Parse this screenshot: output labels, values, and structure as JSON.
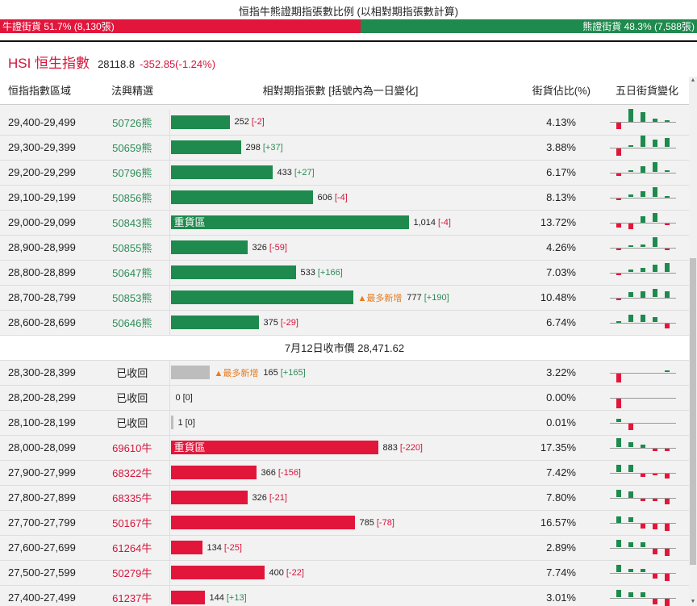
{
  "header": {
    "title": "恒指牛熊證期指張數比例 (以相對期指張數計算)",
    "bull_label": "牛證街貨 51.7% (8,130張)",
    "bear_label": "熊證街貨 48.3% (7,588張)",
    "bull_share": 51.7,
    "bear_share": 48.3
  },
  "index": {
    "name": "HSI 恒生指數",
    "value": "28118.8",
    "change": "-352.85(-1.24%)"
  },
  "table": {
    "headers": {
      "range": "恒指指數區域",
      "pick": "法興精選",
      "contracts": "相對期指張數 [括號內為一日變化]",
      "share": "街貨佔比(%)",
      "five_day": "五日街貨變化"
    },
    "bear_rows": [
      {
        "range": "29,400-29,499",
        "code": "50726熊",
        "n": 252,
        "num": "252",
        "chg": "[-2]",
        "dir": "neg",
        "hot": "",
        "pct": "4.13%",
        "spark": [
          -1.0,
          2.0,
          1.5,
          0.5,
          0.3
        ]
      },
      {
        "range": "29,300-29,399",
        "code": "50659熊",
        "n": 298,
        "num": "298",
        "chg": "[+37]",
        "dir": "pos",
        "hot": "",
        "pct": "3.88%",
        "spark": [
          -1.2,
          0.3,
          1.8,
          1.2,
          1.4
        ]
      },
      {
        "range": "29,200-29,299",
        "code": "50796熊",
        "n": 433,
        "num": "433",
        "chg": "[+27]",
        "dir": "pos",
        "hot": "",
        "pct": "6.17%",
        "spark": [
          -0.4,
          0.3,
          1.0,
          1.6,
          0.3
        ]
      },
      {
        "range": "29,100-29,199",
        "code": "50856熊",
        "n": 606,
        "num": "606",
        "chg": "[-4]",
        "dir": "neg",
        "hot": "",
        "pct": "8.13%",
        "spark": [
          -0.3,
          0.4,
          0.9,
          1.6,
          0.2
        ]
      },
      {
        "range": "29,000-29,099",
        "code": "50843熊",
        "label": "重貨區",
        "n": 1014,
        "num": "1,014",
        "chg": "[-4]",
        "dir": "neg",
        "hot": "",
        "pct": "13.72%",
        "spark": [
          -0.7,
          -0.9,
          1.0,
          1.4,
          -0.3
        ]
      },
      {
        "range": "28,900-28,999",
        "code": "50855熊",
        "n": 326,
        "num": "326",
        "chg": "[-59]",
        "dir": "neg",
        "hot": "",
        "pct": "4.26%",
        "spark": [
          -0.3,
          0.3,
          0.4,
          1.6,
          -0.3
        ]
      },
      {
        "range": "28,800-28,899",
        "code": "50647熊",
        "n": 533,
        "num": "533",
        "chg": "[+166]",
        "dir": "pos",
        "hot": "",
        "pct": "7.03%",
        "spark": [
          -0.3,
          0.4,
          0.7,
          1.2,
          1.4
        ]
      },
      {
        "range": "28,700-28,799",
        "code": "50853熊",
        "n": 777,
        "num": "777",
        "chg": "[+190]",
        "dir": "pos",
        "hot": "▲最多新增",
        "pct": "10.48%",
        "spark": [
          -0.3,
          0.8,
          1.0,
          1.3,
          1.0
        ]
      },
      {
        "range": "28,600-28,699",
        "code": "50646熊",
        "n": 375,
        "num": "375",
        "chg": "[-29]",
        "dir": "neg",
        "hot": "",
        "pct": "6.74%",
        "spark": [
          0.2,
          1.2,
          1.2,
          0.8,
          -0.8
        ]
      }
    ],
    "mid_label": "7月12日收市價 28,471.62",
    "bull_rows": [
      {
        "range": "28,300-28,399",
        "code": "已收回",
        "closed": true,
        "n": 165,
        "hot_before": "▲最多新增",
        "num": "165",
        "chg": "[+165]",
        "dir": "pos",
        "pct": "3.22%",
        "spark": [
          -1.4,
          0,
          0,
          0,
          0.3
        ]
      },
      {
        "range": "28,200-28,299",
        "code": "已收回",
        "closed": true,
        "n": 0,
        "num": "0",
        "chg": "[0]",
        "dir": "zero",
        "pct": "0.00%",
        "spark": [
          -1.6,
          0,
          0,
          0,
          0
        ]
      },
      {
        "range": "28,100-28,199",
        "code": "已收回",
        "closed": true,
        "n": 1,
        "num": "1",
        "chg": "[0]",
        "dir": "zero",
        "pct": "0.01%",
        "spark": [
          0.6,
          -1.0,
          0,
          0,
          0
        ]
      },
      {
        "range": "28,000-28,099",
        "code": "69610牛",
        "label": "重貨區",
        "n": 883,
        "num": "883",
        "chg": "[-220]",
        "dir": "neg",
        "pct": "17.35%",
        "spark": [
          1.4,
          0.8,
          0.5,
          -0.4,
          -0.4
        ]
      },
      {
        "range": "27,900-27,999",
        "code": "68322牛",
        "n": 366,
        "num": "366",
        "chg": "[-156]",
        "dir": "neg",
        "pct": "7.42%",
        "spark": [
          1.2,
          1.2,
          -0.5,
          -0.3,
          -0.8
        ]
      },
      {
        "range": "27,800-27,899",
        "code": "68335牛",
        "n": 326,
        "num": "326",
        "chg": "[-21]",
        "dir": "neg",
        "pct": "7.80%",
        "spark": [
          1.2,
          1.0,
          -0.4,
          -0.4,
          -0.9
        ]
      },
      {
        "range": "27,700-27,799",
        "code": "50167牛",
        "n": 785,
        "num": "785",
        "chg": "[-78]",
        "dir": "neg",
        "pct": "16.57%",
        "spark": [
          1.0,
          0.8,
          -0.8,
          -0.9,
          -1.2
        ]
      },
      {
        "range": "27,600-27,699",
        "code": "61264牛",
        "n": 134,
        "num": "134",
        "chg": "[-25]",
        "dir": "neg",
        "pct": "2.89%",
        "spark": [
          1.2,
          0.8,
          0.8,
          -0.9,
          -1.2
        ]
      },
      {
        "range": "27,500-27,599",
        "code": "50279牛",
        "n": 400,
        "num": "400",
        "chg": "[-22]",
        "dir": "neg",
        "pct": "7.74%",
        "spark": [
          1.2,
          0.6,
          0.6,
          -0.8,
          -1.2
        ]
      },
      {
        "range": "27,400-27,499",
        "code": "61237牛",
        "n": 144,
        "num": "144",
        "chg": "[+13]",
        "dir": "pos",
        "pct": "3.01%",
        "spark": [
          1.2,
          0.8,
          0.8,
          -0.9,
          -1.2
        ]
      }
    ]
  },
  "colors": {
    "bull": "#e2163b",
    "bear": "#1e8a4d",
    "hot": "#e87a1d"
  }
}
